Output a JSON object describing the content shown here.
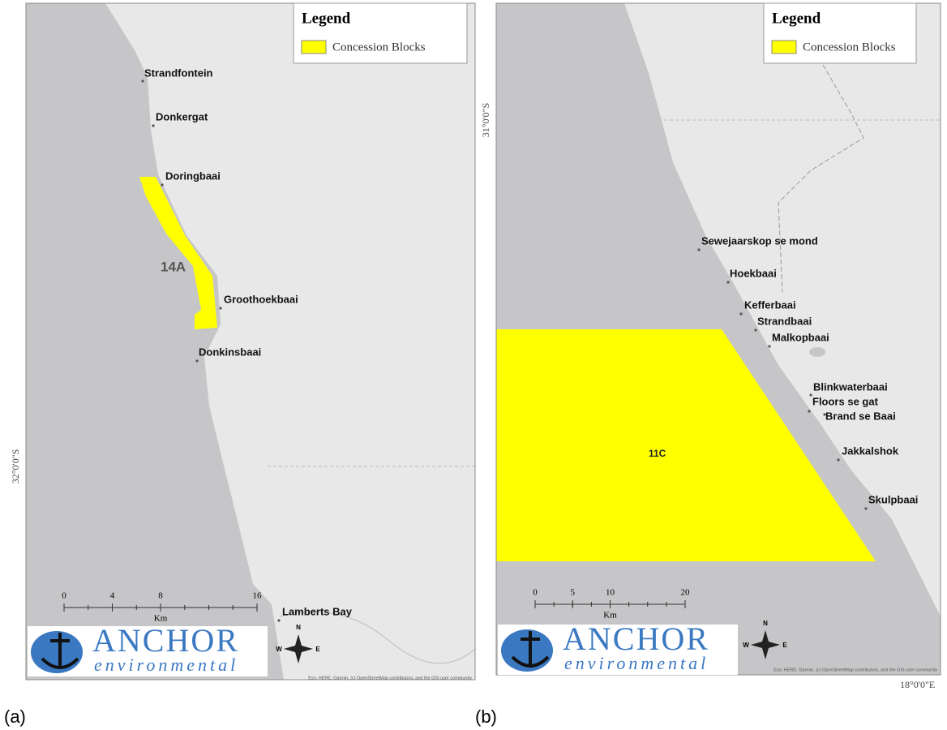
{
  "panels": [
    {
      "label": "(a)",
      "legend_title": "Legend",
      "legend_item": "Concession Blocks",
      "block_label": "14A",
      "places": [
        "Strandfontein",
        "Donkergat",
        "Doringbaai",
        "Groothoekbaai",
        "Donkinsbaai",
        "Lamberts Bay"
      ],
      "lat_label": "32°0'0\"S",
      "scale_ticks": [
        0,
        4,
        8,
        16
      ],
      "scale_unit": "Km",
      "logo_main": "ANCHOR",
      "logo_sub": "environmental",
      "compass": [
        "N",
        "W",
        "E"
      ],
      "attribution": "Esri, HERE, Garmin, (c) OpenStreetMap contributors, and the GIS user community"
    },
    {
      "label": "(b)",
      "legend_title": "Legend",
      "legend_item": "Concession Blocks",
      "block_label": "11C",
      "places": [
        "Sewejaarskop se mond",
        "Hoekbaai",
        "Kefferbaai",
        "Strandbaai",
        "Malkopbaai",
        "Blinkwaterbaai",
        "Floors se gat",
        "Brand se Baai",
        "Jakkalshok",
        "Skulpbaai"
      ],
      "lat_label": "31°0'0\"S",
      "lon_label": "18°0'0\"E",
      "scale_ticks": [
        0,
        5,
        10,
        20
      ],
      "scale_unit": "Km",
      "logo_main": "ANCHOR",
      "logo_sub": "environmental",
      "compass": [
        "N",
        "W",
        "E"
      ],
      "attribution": "Esri, HERE, Garmin, (c) OpenStreetMap contributors, and the GIS user community"
    }
  ]
}
